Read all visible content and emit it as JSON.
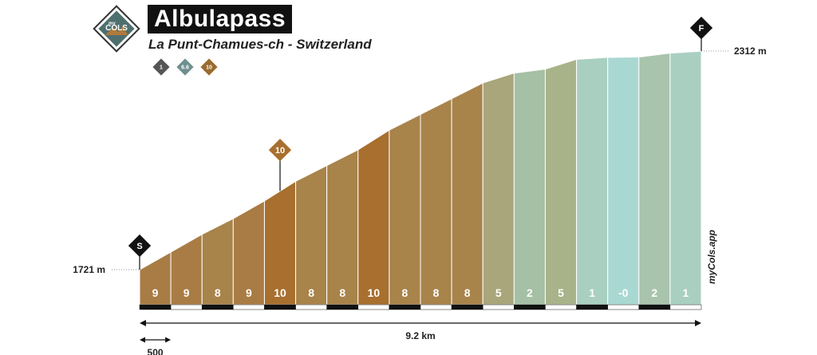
{
  "header": {
    "title": "Albulapass",
    "subtitle": "La Punt-Chamues-ch - Switzerland",
    "logo_small": "my",
    "logo_main": "COLS",
    "brand_side": "myCols.app",
    "difficulty_badges": [
      {
        "label": "1",
        "color": "#555555"
      },
      {
        "label": "6.6",
        "color": "#6f8f8f"
      },
      {
        "label": "10",
        "color": "#9a6b2f"
      }
    ]
  },
  "markers": {
    "start": "S",
    "finish": "F",
    "steepest_label": "10"
  },
  "scale_labels": {
    "total_distance": "9.2 km",
    "segment_length": "500"
  },
  "chart_data": {
    "type": "area",
    "title": "Albulapass",
    "subtitle": "La Punt-Chamues-ch - Switzerland",
    "start_altitude_label": "1721 m",
    "end_altitude_label": "2312 m",
    "total_distance_km": 9.2,
    "altitude_range_m": [
      1721,
      2312
    ],
    "segment_length_m": 500,
    "steepest_segment_index": 4,
    "segments": [
      {
        "label": "9",
        "gradient": 9,
        "color": "#a87c44"
      },
      {
        "label": "9",
        "gradient": 9,
        "color": "#a87c44"
      },
      {
        "label": "8",
        "gradient": 8,
        "color": "#a8834a"
      },
      {
        "label": "9",
        "gradient": 9,
        "color": "#a87c44"
      },
      {
        "label": "10",
        "gradient": 10,
        "color": "#a86f2e"
      },
      {
        "label": "8",
        "gradient": 8,
        "color": "#a8834a"
      },
      {
        "label": "8",
        "gradient": 8,
        "color": "#a8834a"
      },
      {
        "label": "10",
        "gradient": 10,
        "color": "#a86f2e"
      },
      {
        "label": "8",
        "gradient": 8,
        "color": "#a8834a"
      },
      {
        "label": "8",
        "gradient": 8,
        "color": "#a8834a"
      },
      {
        "label": "8",
        "gradient": 8,
        "color": "#a8834a"
      },
      {
        "label": "5",
        "gradient": 5,
        "color": "#a8a67a"
      },
      {
        "label": "2",
        "gradient": 2,
        "color": "#a5c0a4"
      },
      {
        "label": "5",
        "gradient": 5,
        "color": "#a8b38a"
      },
      {
        "label": "1",
        "gradient": 1,
        "color": "#a9cfc0"
      },
      {
        "label": "-0",
        "gradient": 0,
        "color": "#a9d8d2"
      },
      {
        "label": "2",
        "gradient": 2,
        "color": "#a8c4ac"
      },
      {
        "label": "1",
        "gradient": 1,
        "color": "#a9cfc0"
      }
    ]
  }
}
